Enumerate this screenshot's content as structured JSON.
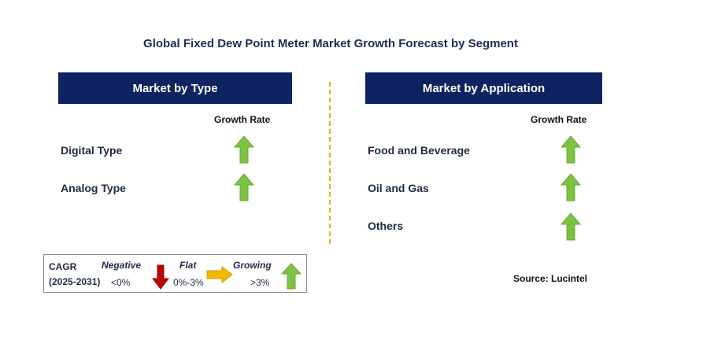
{
  "title": "Global Fixed Dew Point Meter Market Growth Forecast by Segment",
  "panels": {
    "type": {
      "header": "Market by Type",
      "growth_label": "Growth Rate",
      "rows": [
        {
          "label": "Digital Type",
          "trend": "growing"
        },
        {
          "label": "Analog Type",
          "trend": "growing"
        }
      ]
    },
    "application": {
      "header": "Market by Application",
      "growth_label": "Growth Rate",
      "rows": [
        {
          "label": "Food and Beverage",
          "trend": "growing"
        },
        {
          "label": "Oil and Gas",
          "trend": "growing"
        },
        {
          "label": "Others",
          "trend": "growing"
        }
      ]
    }
  },
  "legend": {
    "cagr": "CAGR",
    "years": "(2025-2031)",
    "negative": "Negative",
    "negative_range": "<0%",
    "flat": "Flat",
    "flat_range": "0%-3%",
    "growing": "Growing",
    "growing_range": ">3%"
  },
  "source": "Source: Lucintel",
  "colors": {
    "header_bg": "#0d2461",
    "up_arrow": "#7dc242",
    "down_arrow": "#c00000",
    "flat_arrow": "#f5b800",
    "divider": "#f0a818"
  }
}
